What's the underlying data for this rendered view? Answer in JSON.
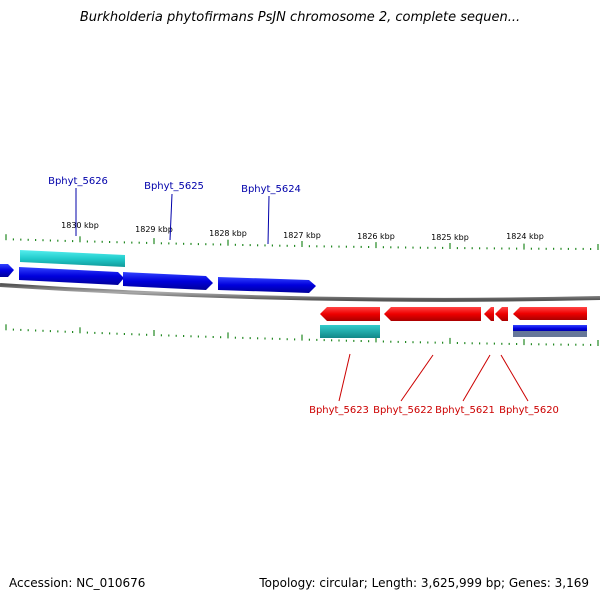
{
  "title": "Burkholderia phytofirmans PsJN chromosome 2, complete sequen...",
  "footer": {
    "accession": "Accession: NC_010676",
    "topology": "Topology: circular; Length: 3,625,999 bp; Genes: 3,169"
  },
  "colors": {
    "forward_cds": "#0000dd",
    "reverse_cds": "#ee0000",
    "forward_rna": "#22cccc",
    "backbone": "#888888",
    "ticks": "#228822",
    "forward_label": "#0000aa",
    "reverse_label": "#cc0000"
  },
  "scale": {
    "unit": "kbp",
    "labels": [
      "1830 kbp",
      "1829 kbp",
      "1828 kbp",
      "1827 kbp",
      "1826 kbp",
      "1825 kbp",
      "1824 kbp"
    ]
  },
  "forward_genes": [
    {
      "label": "Bphyt_5626"
    },
    {
      "label": "Bphyt_5625"
    },
    {
      "label": "Bphyt_5624"
    }
  ],
  "reverse_genes": [
    {
      "label": "Bphyt_5623"
    },
    {
      "label": "Bphyt_5622"
    },
    {
      "label": "Bphyt_5621"
    },
    {
      "label": "Bphyt_5620"
    }
  ]
}
